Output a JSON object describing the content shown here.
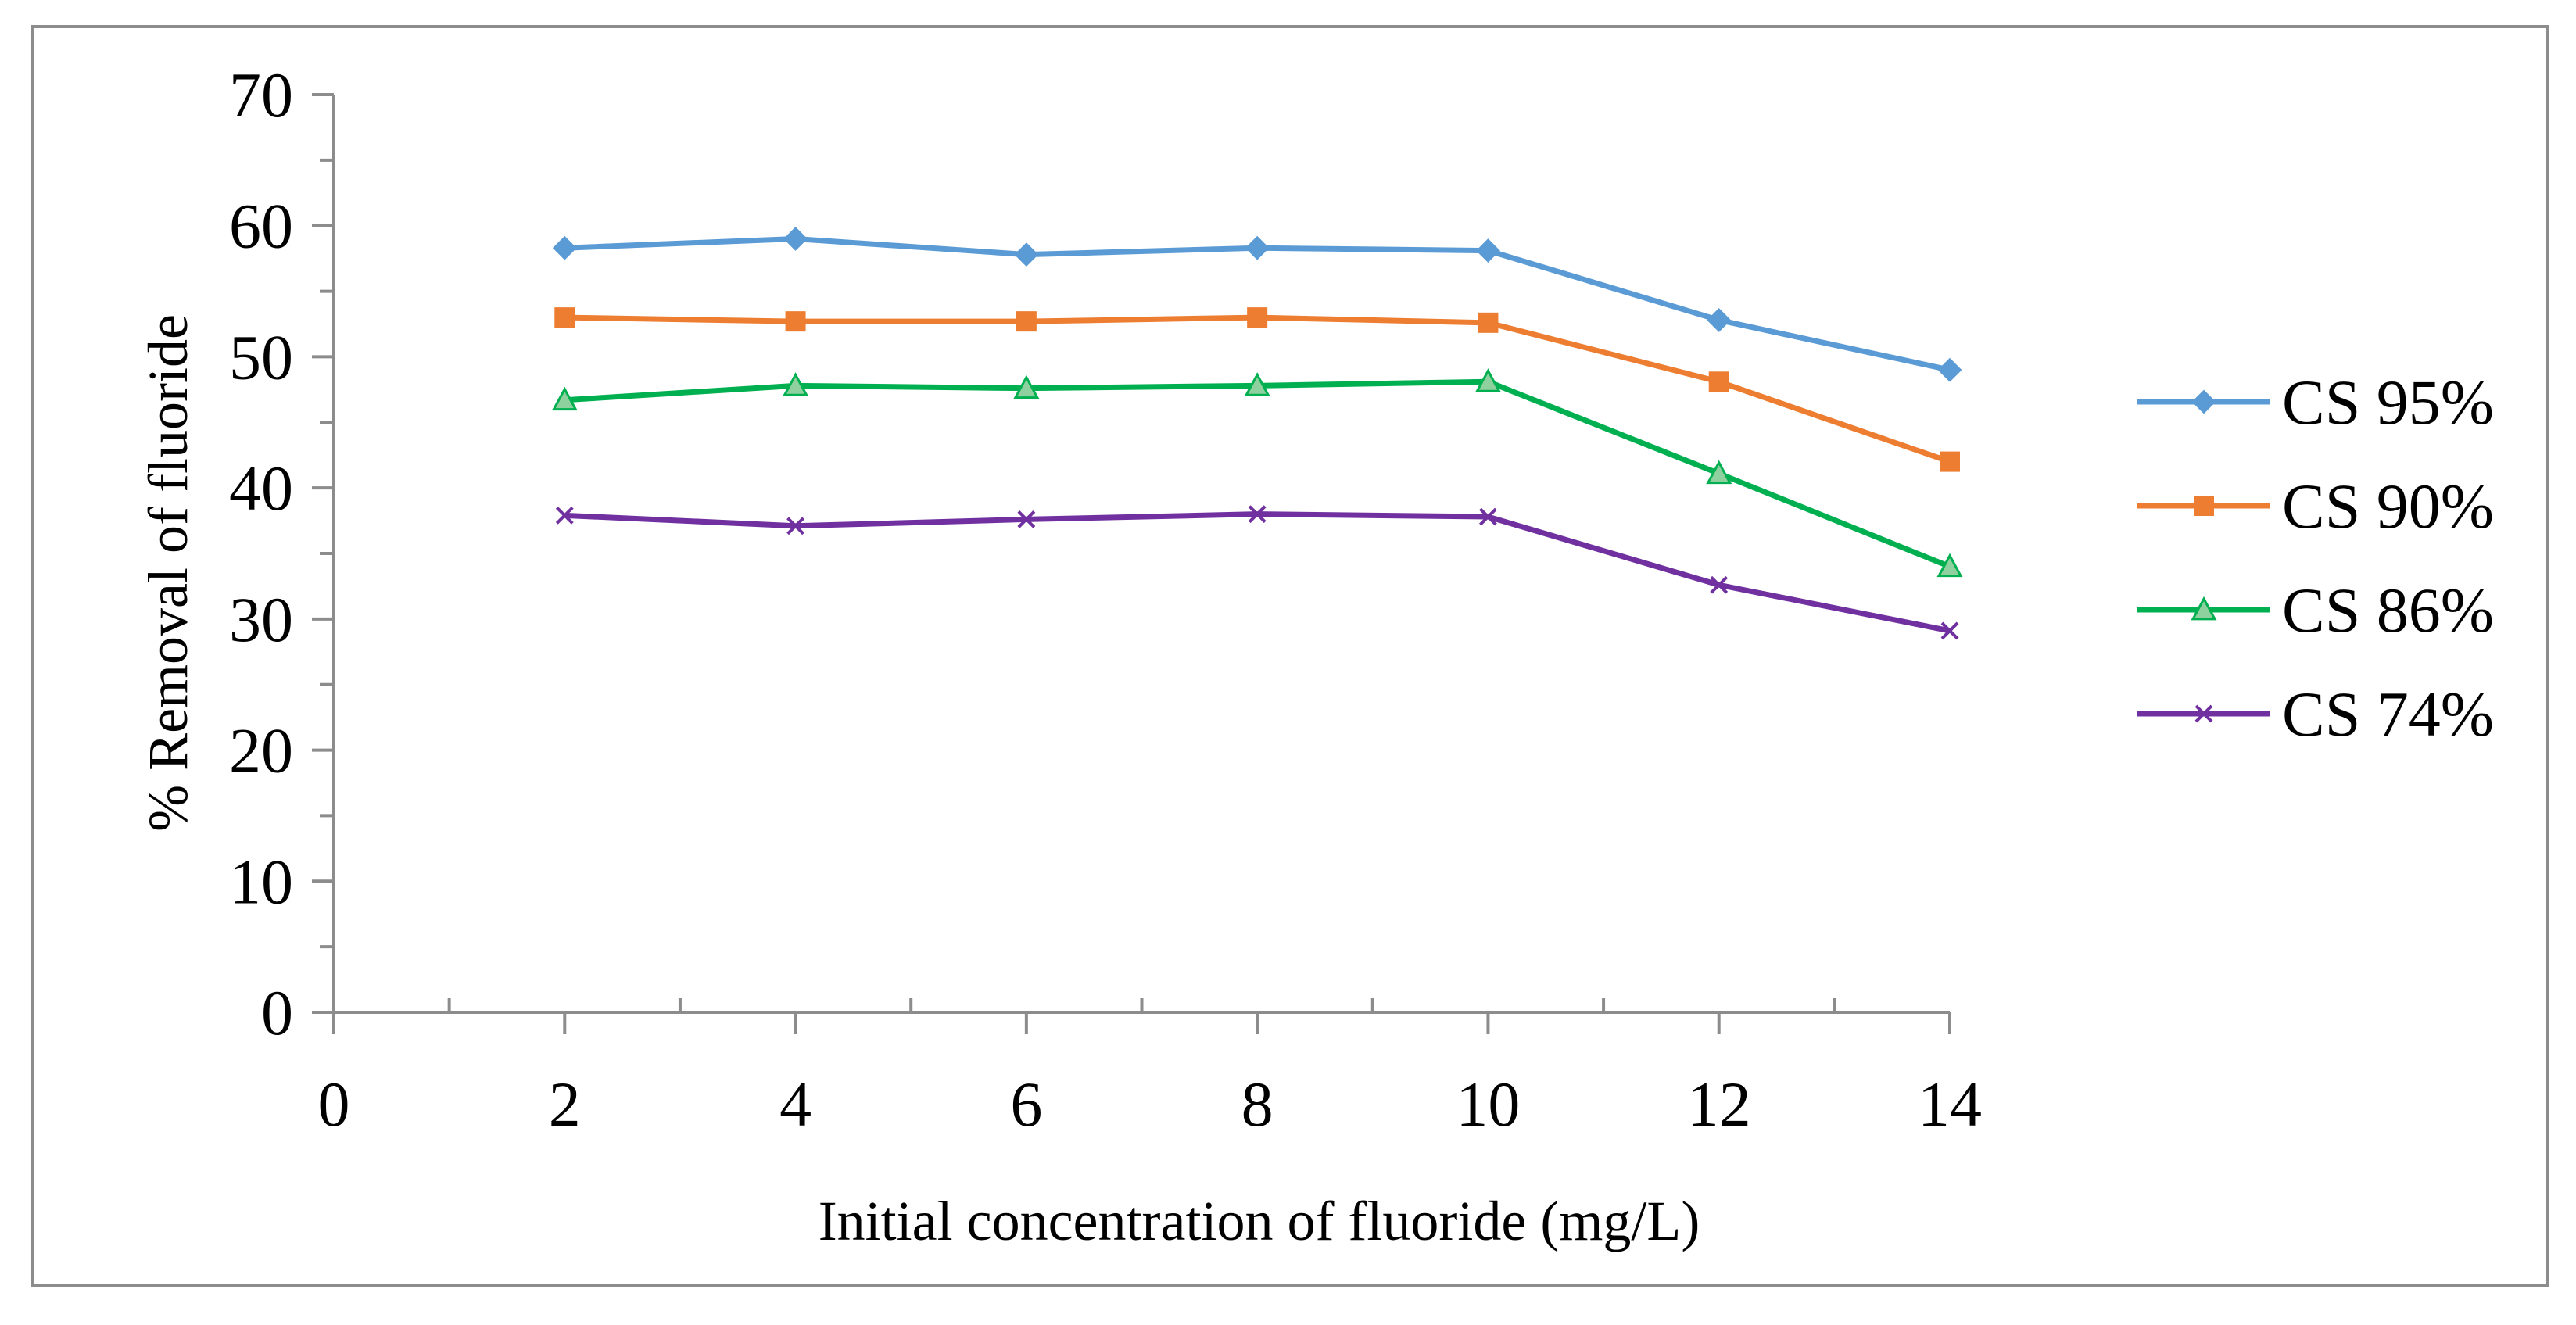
{
  "chart_data": {
    "type": "line",
    "title": "",
    "xlabel": "Initial concentration of fluoride (mg/L)",
    "ylabel": "% Removal of fluoride",
    "xlim": [
      0,
      14
    ],
    "ylim": [
      0,
      70
    ],
    "x_major_ticks": [
      0,
      2,
      4,
      6,
      8,
      10,
      12,
      14
    ],
    "x_minor_step": 1,
    "y_major_ticks": [
      0,
      10,
      20,
      30,
      40,
      50,
      60,
      70
    ],
    "y_minor_step": 5,
    "grid": false,
    "legend_position": "right",
    "x": [
      2,
      4,
      6,
      8,
      10,
      12,
      14
    ],
    "series": [
      {
        "name": "CS 95%",
        "color": "#5b9bd5",
        "marker": "diamond",
        "values": [
          58.3,
          59.0,
          57.8,
          58.3,
          58.1,
          52.8,
          49.0
        ]
      },
      {
        "name": "CS 90%",
        "color": "#ed7d31",
        "marker": "square",
        "values": [
          53.0,
          52.7,
          52.7,
          53.0,
          52.6,
          48.1,
          42.0
        ]
      },
      {
        "name": "CS 86%",
        "color": "#00b050",
        "marker": "triangle",
        "values": [
          46.7,
          47.8,
          47.6,
          47.8,
          48.1,
          41.1,
          34.0
        ]
      },
      {
        "name": "CS 74%",
        "color": "#7030a0",
        "marker": "x",
        "values": [
          37.9,
          37.1,
          37.6,
          38.0,
          37.8,
          32.6,
          29.1
        ]
      }
    ]
  }
}
